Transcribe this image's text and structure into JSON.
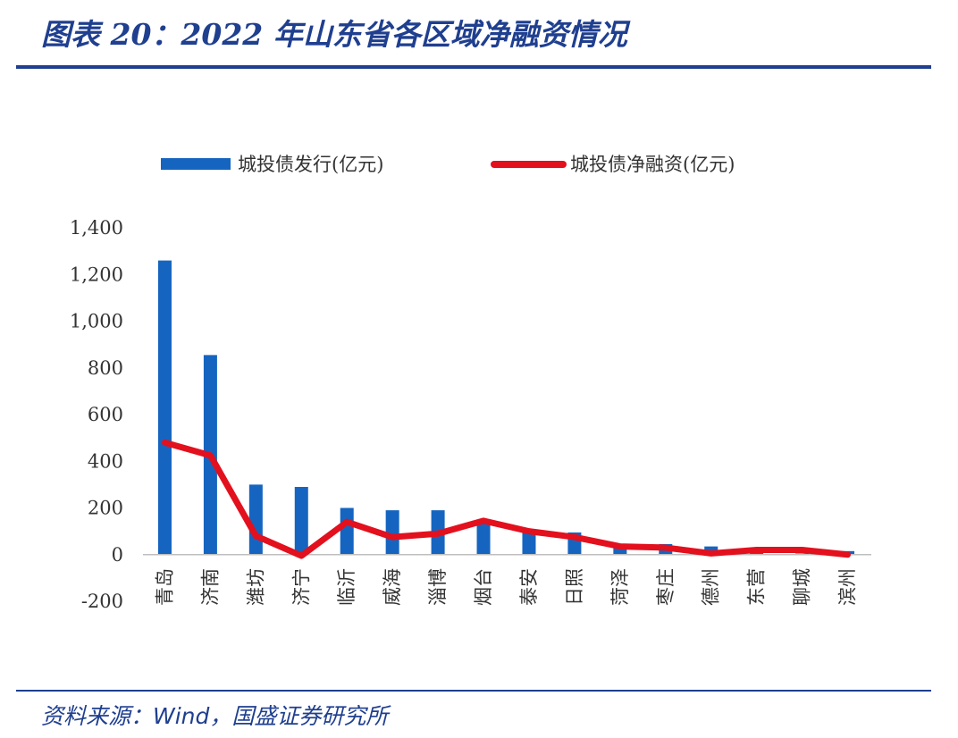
{
  "header": {
    "title": "图表 20：2022 年山东省各区域净融资情况"
  },
  "footer": {
    "source": "资料来源：Wind，国盛证券研究所"
  },
  "colors": {
    "accent": "#1f3f8f",
    "bar": "#1565c0",
    "line": "#e3101e"
  },
  "chart_data": {
    "type": "bar",
    "categories": [
      "青岛",
      "济南",
      "潍坊",
      "济宁",
      "临沂",
      "威海",
      "淄博",
      "烟台",
      "泰安",
      "日照",
      "菏泽",
      "枣庄",
      "德州",
      "东营",
      "聊城",
      "滨州"
    ],
    "series": [
      {
        "name": "城投债发行(亿元)",
        "type": "bar",
        "values": [
          1260,
          855,
          300,
          290,
          200,
          190,
          190,
          135,
          100,
          95,
          35,
          45,
          35,
          10,
          5,
          15
        ]
      },
      {
        "name": "城投债净融资(亿元)",
        "type": "line",
        "values": [
          480,
          425,
          80,
          -5,
          140,
          75,
          90,
          145,
          100,
          75,
          35,
          30,
          5,
          20,
          20,
          0
        ]
      }
    ],
    "yticks": [
      "1,400",
      "1,200",
      "1,000",
      "800",
      "600",
      "400",
      "200",
      "0",
      "-200"
    ],
    "ylim": [
      -200,
      1400
    ],
    "legend_position": "top",
    "grid": false
  }
}
